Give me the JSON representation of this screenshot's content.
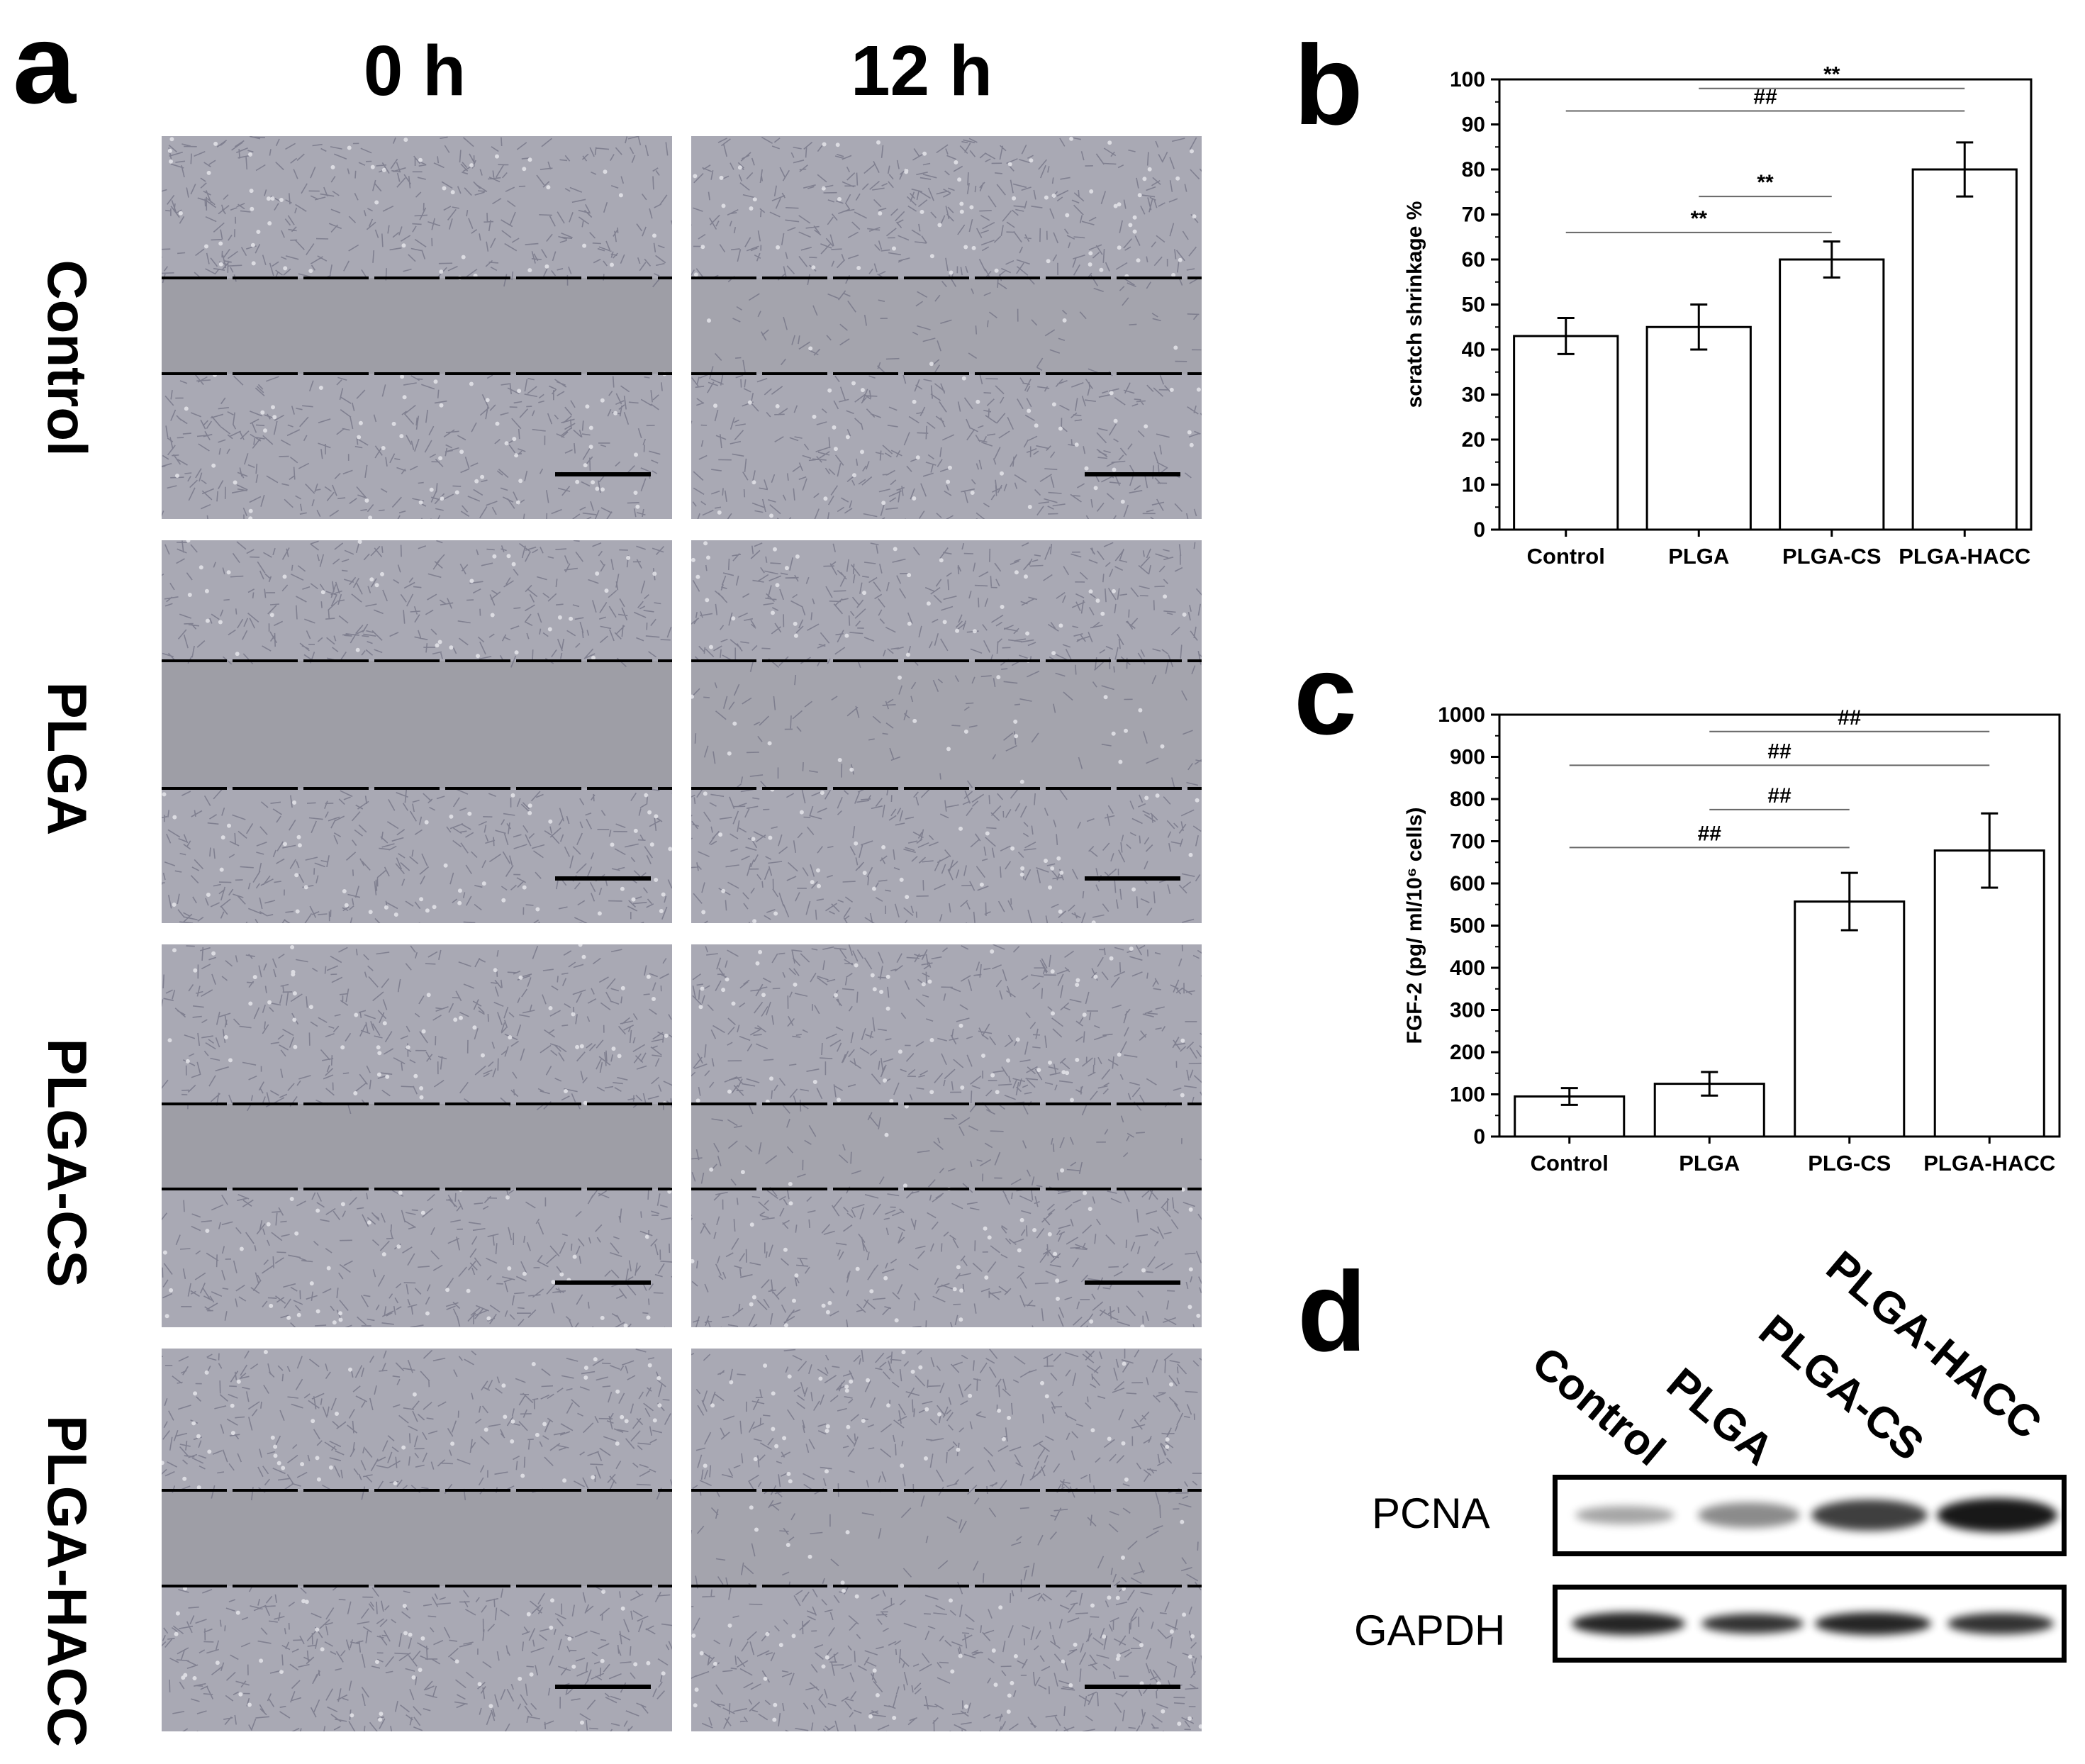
{
  "panel_a": {
    "letter": "a",
    "time_labels": [
      "0 h",
      "12 h"
    ],
    "rows": [
      "Control",
      "PLGA",
      "PLGA-CS",
      "PLGA-HACC"
    ]
  },
  "panel_b": {
    "letter": "b"
  },
  "panel_c": {
    "letter": "c"
  },
  "panel_d": {
    "letter": "d",
    "lanes": [
      "Control",
      "PLGA",
      "PLGA-CS",
      "PLGA-HACC"
    ],
    "proteins": [
      "PCNA",
      "GAPDH"
    ]
  },
  "chart_data": [
    {
      "type": "bar",
      "panel": "b",
      "categories": [
        "Control",
        "PLGA",
        "PLGA-CS",
        "PLGA-HACC"
      ],
      "values": [
        43,
        45,
        60,
        80
      ],
      "errors": [
        4,
        5,
        4,
        6
      ],
      "ylabel": "scratch shrinkage %",
      "xlabel": "",
      "ylim": [
        0,
        100
      ],
      "yticks": [
        0,
        10,
        20,
        30,
        40,
        50,
        60,
        70,
        80,
        90,
        100
      ],
      "annotations": [
        {
          "from": 1,
          "to": 3,
          "label": "**",
          "level": 98
        },
        {
          "from": 0,
          "to": 3,
          "label": "##",
          "level": 93
        },
        {
          "from": 1,
          "to": 2,
          "label": "**",
          "level": 74
        },
        {
          "from": 0,
          "to": 2,
          "label": "**",
          "level": 66
        }
      ]
    },
    {
      "type": "bar",
      "panel": "c",
      "categories": [
        "Control",
        "PLGA",
        "PLG-CS",
        "PLGA-HACC"
      ],
      "values": [
        95,
        125,
        557,
        678
      ],
      "errors": [
        20,
        28,
        68,
        88
      ],
      "ylabel": "FGF-2 (pg/ ml/10⁶ cells)",
      "xlabel": "",
      "ylim": [
        0,
        1000
      ],
      "yticks": [
        0,
        100,
        200,
        300,
        400,
        500,
        600,
        700,
        800,
        900,
        1000
      ],
      "annotations": [
        {
          "from": 1,
          "to": 3,
          "label": "##",
          "level": 960
        },
        {
          "from": 0,
          "to": 3,
          "label": "##",
          "level": 880
        },
        {
          "from": 1,
          "to": 2,
          "label": "##",
          "level": 775
        },
        {
          "from": 0,
          "to": 2,
          "label": "##",
          "level": 685
        }
      ]
    }
  ]
}
